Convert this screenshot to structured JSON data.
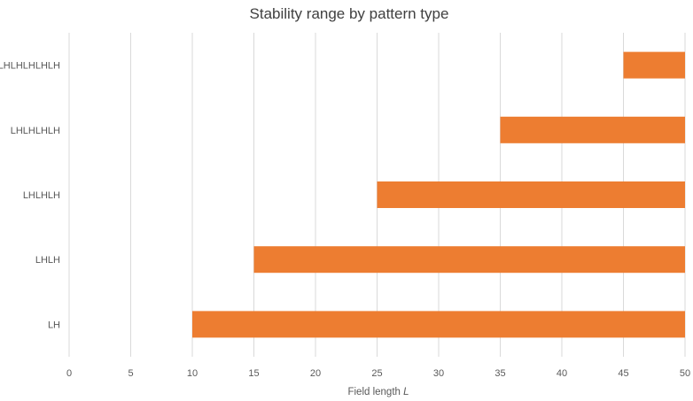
{
  "chart_data": {
    "type": "bar",
    "orientation": "horizontal",
    "stacked_floating": true,
    "title": "Stability range by pattern type",
    "xlabel": {
      "text": "Field length ",
      "variable": "L"
    },
    "ylabel": "",
    "categories": [
      "LH",
      "LHLH",
      "LHLHLH",
      "LHLHLHLH",
      "LHLHLHLHLH"
    ],
    "series": [
      {
        "color": "#ED7D31",
        "ranges": [
          [
            10,
            50
          ],
          [
            15,
            50
          ],
          [
            25,
            50
          ],
          [
            35,
            50
          ],
          [
            45,
            50
          ]
        ]
      }
    ],
    "xlim": [
      0,
      50
    ],
    "xticks": [
      0,
      5,
      10,
      15,
      20,
      25,
      30,
      35,
      40,
      45,
      50
    ],
    "grid": "vertical",
    "legend": "none",
    "colors": {
      "bar": "#ED7D31",
      "grid": "#D9D9D9",
      "text": "#595959",
      "title": "#404040"
    }
  }
}
